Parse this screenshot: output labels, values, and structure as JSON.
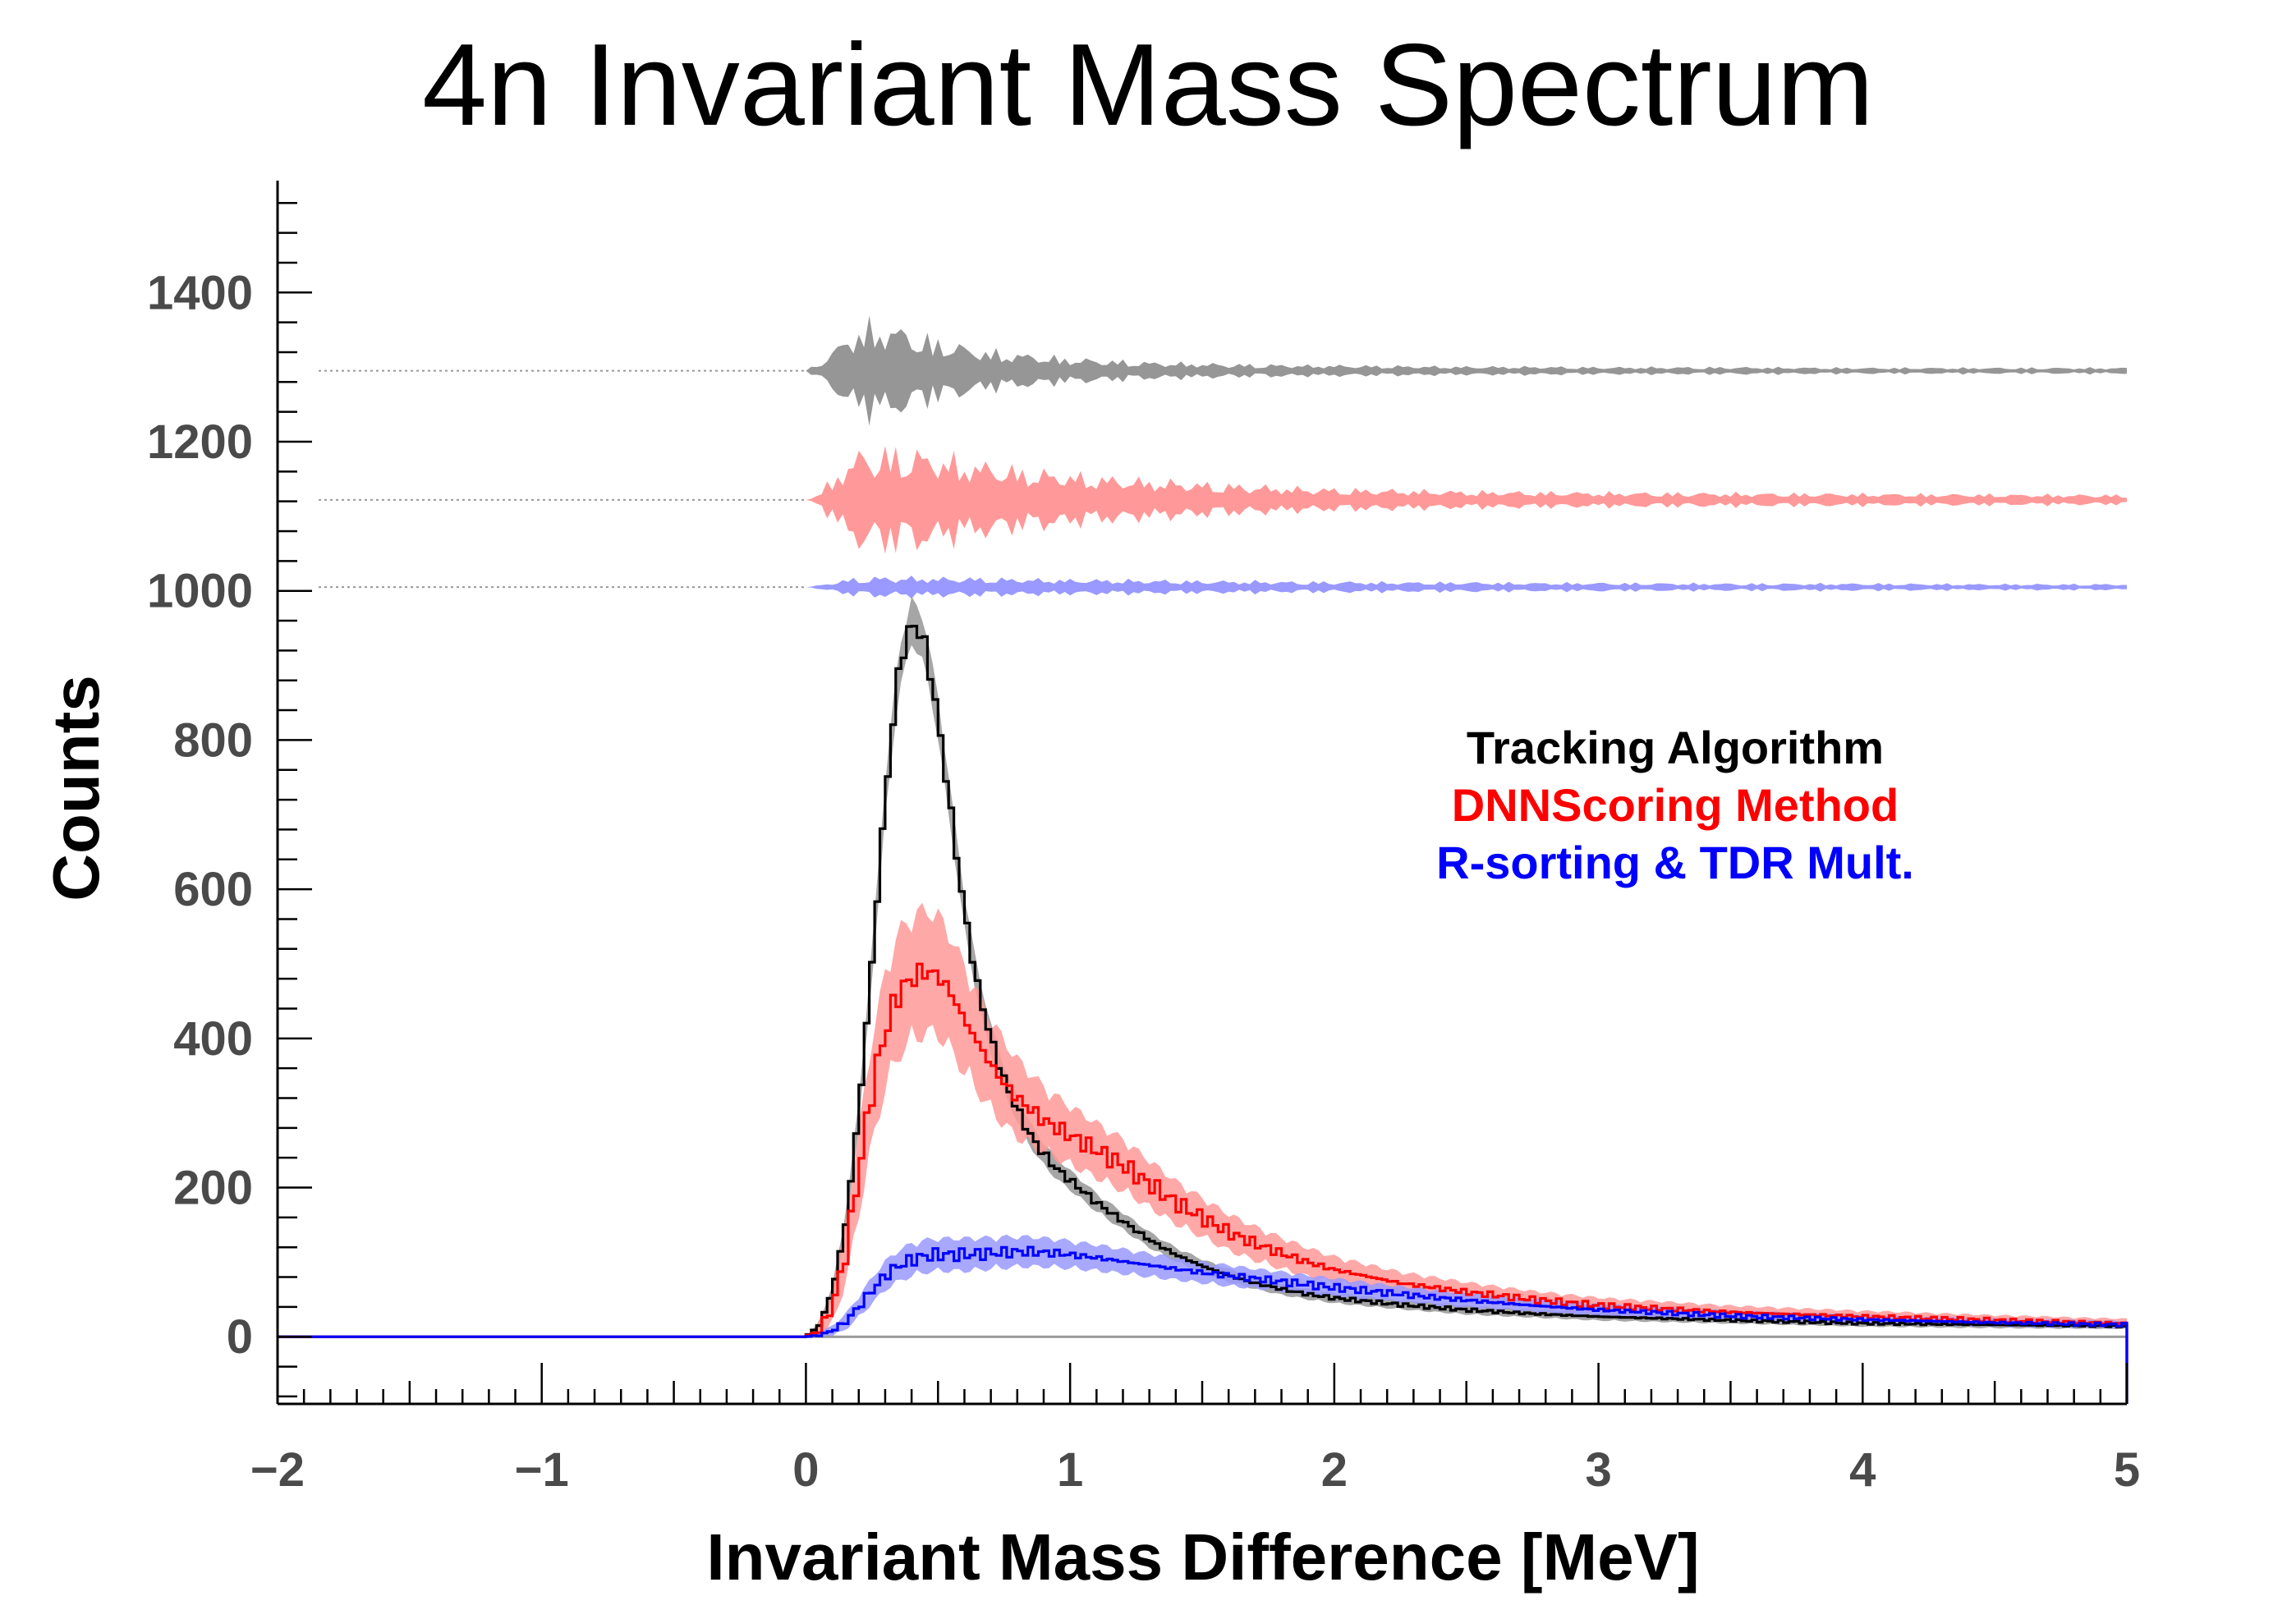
{
  "chart_data": {
    "type": "line",
    "title": "4n Invariant Mass Spectrum",
    "xlabel": "Invariant Mass Difference [MeV]",
    "ylabel": "Counts",
    "xlim": [
      -2,
      5
    ],
    "ylim": [
      -90,
      1550
    ],
    "x_ticks": [
      {
        "value": -2,
        "label": "−2"
      },
      {
        "value": -1,
        "label": "−1"
      },
      {
        "value": 0,
        "label": "0"
      },
      {
        "value": 1,
        "label": "1"
      },
      {
        "value": 2,
        "label": "2"
      },
      {
        "value": 3,
        "label": "3"
      },
      {
        "value": 4,
        "label": "4"
      },
      {
        "value": 5,
        "label": "5"
      }
    ],
    "y_ticks": [
      {
        "value": 0,
        "label": "0"
      },
      {
        "value": 200,
        "label": "200"
      },
      {
        "value": 400,
        "label": "400"
      },
      {
        "value": 600,
        "label": "600"
      },
      {
        "value": 800,
        "label": "800"
      },
      {
        "value": 1000,
        "label": "1000"
      },
      {
        "value": 1200,
        "label": "1200"
      },
      {
        "value": 1400,
        "label": "1400"
      }
    ],
    "legend_position": "center-right",
    "legend_entries": [
      {
        "label": "Tracking Algorithm",
        "color": "#000000"
      },
      {
        "label": "DNNScoring Method",
        "color": "#ff0000"
      },
      {
        "label": "R-sorting & TDR Mult.",
        "color": "#0000ff"
      }
    ],
    "series": [
      {
        "key": "tracking",
        "color": "#000000",
        "band_color": "#969696",
        "residual_baseline": 1295,
        "x": [
          0.0,
          0.05,
          0.1,
          0.15,
          0.2,
          0.25,
          0.3,
          0.35,
          0.4,
          0.45,
          0.5,
          0.55,
          0.6,
          0.65,
          0.7,
          0.75,
          0.8,
          0.85,
          0.9,
          0.95,
          1.0,
          1.1,
          1.2,
          1.3,
          1.4,
          1.5,
          1.6,
          1.7,
          1.8,
          1.9,
          2.0,
          2.25,
          2.5,
          2.75,
          3.0,
          3.5,
          4.0,
          4.5,
          5.0
        ],
        "y": [
          0,
          15,
          60,
          150,
          300,
          500,
          720,
          890,
          960,
          930,
          830,
          700,
          570,
          470,
          400,
          345,
          305,
          270,
          245,
          225,
          210,
          180,
          155,
          130,
          110,
          95,
          82,
          72,
          64,
          57,
          52,
          43,
          36,
          31,
          27,
          22,
          18,
          16,
          14
        ],
        "band_halfwidth": [
          0,
          5,
          10,
          15,
          20,
          25,
          30,
          32,
          34,
          33,
          32,
          29,
          26,
          24,
          22,
          20,
          19,
          18,
          17,
          16,
          15,
          14,
          13,
          12,
          11,
          10,
          10,
          9,
          9,
          8,
          8,
          7,
          7,
          6,
          6,
          5,
          5,
          5,
          4
        ],
        "residual_amplitude": [
          0,
          15,
          30,
          55,
          70,
          75,
          75,
          70,
          60,
          55,
          50,
          45,
          40,
          35,
          32,
          30,
          28,
          26,
          24,
          22,
          20,
          18,
          16,
          14,
          13,
          12,
          11,
          10,
          10,
          9,
          9,
          8,
          7,
          7,
          6,
          6,
          5,
          5,
          5
        ]
      },
      {
        "key": "dnn",
        "color": "#ff0000",
        "band_color": "#ff9999",
        "residual_baseline": 1122,
        "x": [
          0.0,
          0.05,
          0.1,
          0.15,
          0.2,
          0.25,
          0.3,
          0.35,
          0.4,
          0.45,
          0.5,
          0.55,
          0.6,
          0.65,
          0.7,
          0.75,
          0.8,
          0.85,
          0.9,
          0.95,
          1.0,
          1.1,
          1.2,
          1.3,
          1.4,
          1.5,
          1.6,
          1.7,
          1.8,
          1.9,
          2.0,
          2.25,
          2.5,
          2.75,
          3.0,
          3.5,
          4.0,
          4.5,
          5.0
        ],
        "y": [
          0,
          8,
          40,
          110,
          220,
          330,
          410,
          460,
          480,
          490,
          485,
          460,
          425,
          395,
          365,
          340,
          320,
          305,
          290,
          280,
          270,
          250,
          230,
          205,
          180,
          160,
          140,
          125,
          112,
          100,
          90,
          72,
          60,
          50,
          42,
          33,
          27,
          22,
          18
        ],
        "band_halfwidth": [
          0,
          10,
          25,
          45,
          65,
          80,
          90,
          95,
          95,
          95,
          92,
          88,
          82,
          76,
          70,
          65,
          60,
          56,
          52,
          48,
          45,
          42,
          40,
          36,
          33,
          30,
          28,
          26,
          24,
          22,
          20,
          17,
          15,
          13,
          12,
          10,
          9,
          8,
          7
        ],
        "residual_amplitude": [
          0,
          10,
          35,
          60,
          75,
          80,
          80,
          80,
          78,
          76,
          72,
          68,
          64,
          60,
          57,
          54,
          50,
          48,
          46,
          44,
          42,
          38,
          35,
          32,
          30,
          27,
          25,
          23,
          21,
          19,
          18,
          16,
          14,
          13,
          12,
          11,
          10,
          9,
          8
        ]
      },
      {
        "key": "rsort",
        "color": "#0000ff",
        "band_color": "#9999ff",
        "residual_baseline": 1005,
        "x": [
          0.0,
          0.05,
          0.1,
          0.15,
          0.2,
          0.25,
          0.3,
          0.35,
          0.4,
          0.45,
          0.5,
          0.55,
          0.6,
          0.65,
          0.7,
          0.75,
          0.8,
          0.85,
          0.9,
          0.95,
          1.0,
          1.1,
          1.2,
          1.3,
          1.4,
          1.5,
          1.6,
          1.7,
          1.8,
          1.9,
          2.0,
          2.25,
          2.5,
          2.75,
          3.0,
          3.5,
          4.0,
          4.5,
          5.0
        ],
        "y": [
          0,
          2,
          8,
          20,
          40,
          62,
          82,
          95,
          103,
          108,
          110,
          110,
          110,
          111,
          112,
          113,
          114,
          114,
          113,
          112,
          110,
          106,
          101,
          96,
          91,
          86,
          82,
          78,
          74,
          70,
          66,
          57,
          49,
          42,
          36,
          28,
          23,
          19,
          16
        ],
        "band_halfwidth": [
          0,
          4,
          8,
          12,
          16,
          20,
          22,
          24,
          25,
          25,
          25,
          25,
          25,
          25,
          24,
          24,
          23,
          23,
          22,
          22,
          21,
          20,
          19,
          18,
          17,
          16,
          16,
          15,
          15,
          14,
          14,
          12,
          11,
          10,
          9,
          8,
          7,
          6,
          6
        ],
        "residual_amplitude": [
          0,
          3,
          8,
          12,
          15,
          16,
          16,
          16,
          16,
          16,
          15,
          15,
          15,
          15,
          14,
          14,
          14,
          13,
          13,
          13,
          12,
          12,
          12,
          11,
          11,
          10,
          10,
          10,
          9,
          9,
          9,
          8,
          8,
          7,
          7,
          6,
          6,
          5,
          5
        ]
      }
    ]
  }
}
